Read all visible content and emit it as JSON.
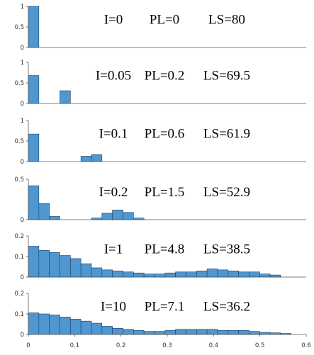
{
  "figure": {
    "background": "#ffffff"
  },
  "style": {
    "bar_color": "#4f97d0",
    "bar_edge": "#1e3f66"
  },
  "chart_data": [
    {
      "type": "bar",
      "bin_width": 0.0227,
      "x_start": 0,
      "values": [
        1.0
      ],
      "ylim": [
        0,
        1
      ],
      "yticks": [
        0,
        0.5,
        1
      ],
      "xlim": [
        0,
        0.6
      ],
      "annotation": [
        {
          "label": "I=0"
        },
        {
          "label": "PL=0"
        },
        {
          "label": "LS=80"
        }
      ]
    },
    {
      "type": "bar",
      "bin_width": 0.0227,
      "x_start": 0,
      "values": [
        0.68,
        0,
        0,
        0.31
      ],
      "ylim": [
        0,
        1
      ],
      "yticks": [
        0,
        0.5,
        1
      ],
      "xlim": [
        0,
        0.6
      ],
      "annotation": [
        {
          "label": "I=0.05"
        },
        {
          "label": "PL=0.2"
        },
        {
          "label": "LS=69.5"
        }
      ]
    },
    {
      "type": "bar",
      "bin_width": 0.0227,
      "x_start": 0,
      "values": [
        0.67,
        0,
        0,
        0,
        0,
        0.13,
        0.17
      ],
      "ylim": [
        0,
        1
      ],
      "yticks": [
        0,
        0.5,
        1
      ],
      "xlim": [
        0,
        0.6
      ],
      "annotation": [
        {
          "label": "I=0.1"
        },
        {
          "label": "PL=0.6"
        },
        {
          "label": "LS=61.9"
        }
      ]
    },
    {
      "type": "bar",
      "bin_width": 0.0227,
      "x_start": 0,
      "values": [
        0.42,
        0.2,
        0.04,
        0,
        0,
        0,
        0.02,
        0.08,
        0.12,
        0.09,
        0.02
      ],
      "ylim": [
        0,
        0.5
      ],
      "yticks": [
        0,
        0.5
      ],
      "xlim": [
        0,
        0.6
      ],
      "annotation": [
        {
          "label": "I=0.2"
        },
        {
          "label": "PL=1.5"
        },
        {
          "label": "LS=52.9"
        }
      ]
    },
    {
      "type": "bar",
      "bin_width": 0.0227,
      "x_start": 0,
      "values": [
        0.15,
        0.13,
        0.12,
        0.105,
        0.09,
        0.065,
        0.045,
        0.035,
        0.03,
        0.025,
        0.02,
        0.015,
        0.015,
        0.02,
        0.025,
        0.025,
        0.03,
        0.04,
        0.035,
        0.03,
        0.025,
        0.025,
        0.015,
        0.01
      ],
      "ylim": [
        0,
        0.2
      ],
      "yticks": [
        0,
        0.1,
        0.2
      ],
      "xlim": [
        0,
        0.6
      ],
      "annotation": [
        {
          "label": "I=1"
        },
        {
          "label": "PL=4.8"
        },
        {
          "label": "LS=38.5"
        }
      ]
    },
    {
      "type": "bar",
      "bin_width": 0.0227,
      "x_start": 0,
      "values": [
        0.105,
        0.1,
        0.095,
        0.085,
        0.075,
        0.065,
        0.055,
        0.04,
        0.03,
        0.025,
        0.02,
        0.015,
        0.015,
        0.02,
        0.025,
        0.025,
        0.025,
        0.025,
        0.02,
        0.02,
        0.02,
        0.015,
        0.01,
        0.008,
        0.005
      ],
      "ylim": [
        0,
        0.2
      ],
      "yticks": [
        0,
        0.1,
        0.2
      ],
      "xlim": [
        0,
        0.6
      ],
      "xticks": [
        "0",
        "0.1",
        "0.2",
        "0.3",
        "0.4",
        "0.5",
        "0.6"
      ],
      "annotation": [
        {
          "label": "I=10"
        },
        {
          "label": "PL=7.1"
        },
        {
          "label": "LS=36.2"
        }
      ]
    }
  ]
}
